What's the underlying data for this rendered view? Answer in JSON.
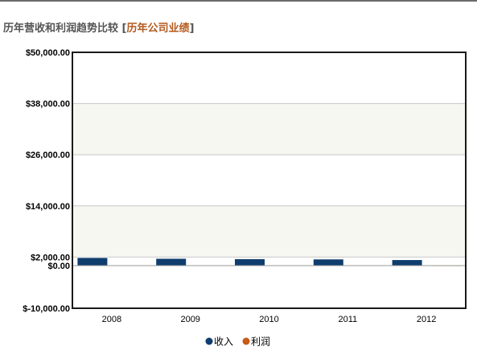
{
  "header": {
    "title": "历年营收和利润趋势比较",
    "bracket_open": "[",
    "link_label": "历年公司业绩",
    "bracket_close": "]"
  },
  "colors": {
    "revenue": "#0f3d6e",
    "profit": "#c65a16",
    "title_link": "#b45a1e",
    "band": "#f7f7f1",
    "gridline": "#c8c8c8",
    "frame": "#1a1a1a"
  },
  "chart_data": {
    "type": "bar",
    "title": "",
    "xlabel": "",
    "ylabel": "",
    "categories": [
      "2008",
      "2009",
      "2010",
      "2011",
      "2012"
    ],
    "series": [
      {
        "name": "收入",
        "color": "#0f3d6e",
        "values": [
          1900,
          1700,
          1600,
          1550,
          1400
        ]
      },
      {
        "name": "利润",
        "color": "#c65a16",
        "values": [
          150,
          120,
          100,
          90,
          80
        ]
      }
    ],
    "yticks": [
      {
        "value": 50000,
        "label": "$50,000.00"
      },
      {
        "value": 38000,
        "label": "$38,000.00"
      },
      {
        "value": 26000,
        "label": "$26,000.00"
      },
      {
        "value": 14000,
        "label": "$14,000.00"
      },
      {
        "value": 2000,
        "label": "$2,000.00"
      },
      {
        "value": 0,
        "label": "$0.00"
      },
      {
        "value": -10000,
        "label": "$-10,000.00"
      }
    ],
    "ylim": [
      -10000,
      50000
    ],
    "grid": true,
    "legend_position": "bottom-center"
  }
}
